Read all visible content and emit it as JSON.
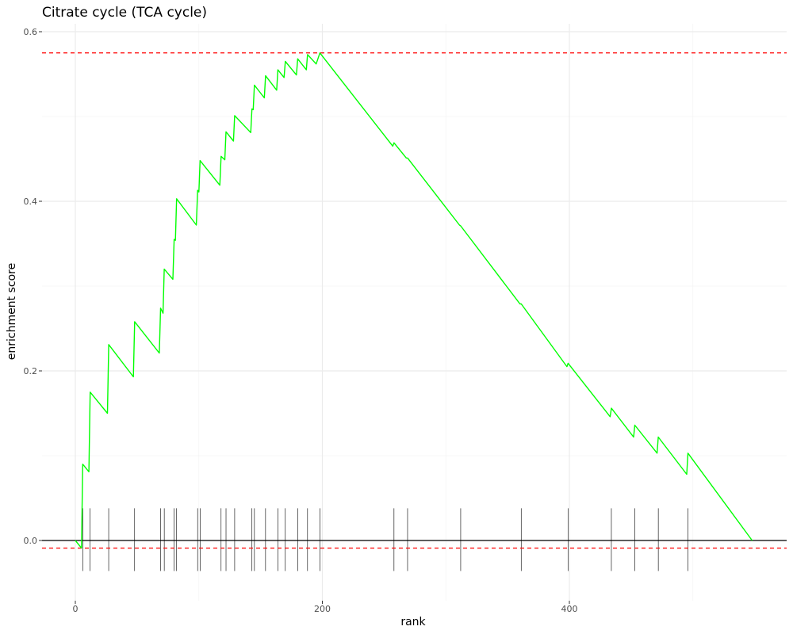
{
  "chart_data": {
    "type": "line",
    "title": "Citrate cycle (TCA cycle)",
    "xlabel": "rank",
    "ylabel": "enrichment score",
    "xlim": [
      0,
      575
    ],
    "ylim": [
      -0.06,
      0.6
    ],
    "x_ticks": [
      0,
      200,
      400
    ],
    "x_tick_labels": [
      "0",
      "200",
      "400"
    ],
    "y_ticks": [
      0.0,
      0.2,
      0.4,
      0.6
    ],
    "y_tick_labels": [
      "0.0",
      "0.2",
      "0.4",
      "0.6"
    ],
    "grid": true,
    "max_es": 0.575,
    "min_es": -0.009,
    "zero_line": 0.0,
    "colors": {
      "running_score": "#00ff00",
      "threshold": "#ff0000",
      "hits": "#000000",
      "grid": "#ebebeb",
      "zero_line": "#000000"
    },
    "series": [
      {
        "name": "running enrichment score",
        "points": [
          [
            0,
            0.0
          ],
          [
            5,
            -0.009
          ],
          [
            6,
            0.09
          ],
          [
            11,
            0.081
          ],
          [
            12,
            0.175
          ],
          [
            26,
            0.15
          ],
          [
            27,
            0.231
          ],
          [
            47,
            0.193
          ],
          [
            48,
            0.258
          ],
          [
            68,
            0.221
          ],
          [
            69,
            0.274
          ],
          [
            71,
            0.268
          ],
          [
            72,
            0.32
          ],
          [
            79,
            0.308
          ],
          [
            80,
            0.355
          ],
          [
            81,
            0.354
          ],
          [
            82,
            0.403
          ],
          [
            98,
            0.372
          ],
          [
            99,
            0.413
          ],
          [
            100,
            0.411
          ],
          [
            101,
            0.448
          ],
          [
            117,
            0.419
          ],
          [
            118,
            0.453
          ],
          [
            121,
            0.449
          ],
          [
            122,
            0.482
          ],
          [
            128,
            0.471
          ],
          [
            129,
            0.501
          ],
          [
            142,
            0.481
          ],
          [
            143,
            0.509
          ],
          [
            144,
            0.508
          ],
          [
            145,
            0.537
          ],
          [
            153,
            0.522
          ],
          [
            154,
            0.548
          ],
          [
            163,
            0.531
          ],
          [
            164,
            0.555
          ],
          [
            169,
            0.546
          ],
          [
            170,
            0.565
          ],
          [
            179,
            0.549
          ],
          [
            180,
            0.568
          ],
          [
            187,
            0.555
          ],
          [
            188,
            0.573
          ],
          [
            195,
            0.562
          ],
          [
            198,
            0.575
          ],
          [
            257,
            0.465
          ],
          [
            258,
            0.469
          ],
          [
            268,
            0.451
          ],
          [
            269,
            0.451
          ],
          [
            311,
            0.372
          ],
          [
            312,
            0.371
          ],
          [
            360,
            0.279
          ],
          [
            361,
            0.279
          ],
          [
            398,
            0.205
          ],
          [
            399,
            0.209
          ],
          [
            433,
            0.146
          ],
          [
            434,
            0.156
          ],
          [
            452,
            0.122
          ],
          [
            453,
            0.136
          ],
          [
            471,
            0.103
          ],
          [
            472,
            0.122
          ],
          [
            495,
            0.078
          ],
          [
            496,
            0.103
          ],
          [
            548,
            0.0
          ]
        ]
      }
    ],
    "hits": [
      6,
      12,
      27,
      48,
      69,
      72,
      80,
      82,
      99,
      101,
      118,
      122,
      129,
      143,
      145,
      154,
      164,
      170,
      180,
      188,
      198,
      258,
      269,
      312,
      361,
      399,
      434,
      453,
      472,
      496
    ]
  }
}
